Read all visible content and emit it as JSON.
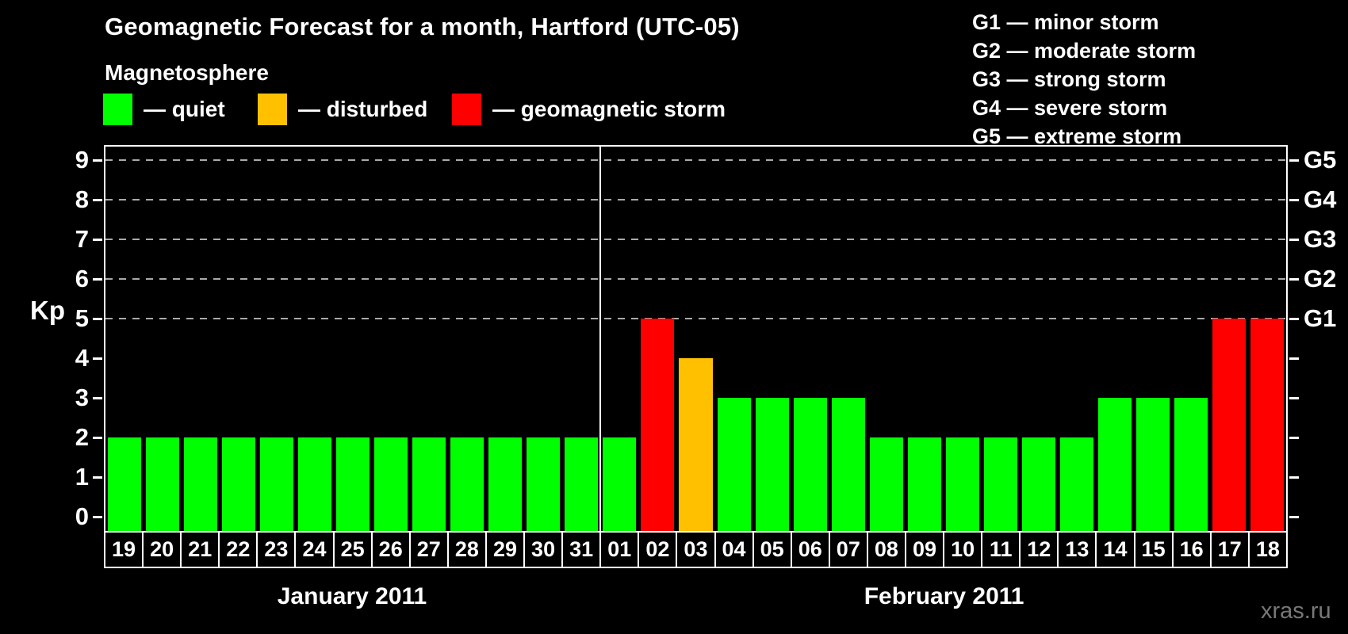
{
  "title": "Geomagnetic Forecast for a month, Hartford (UTC-05)",
  "legend": {
    "heading": "Magnetosphere",
    "items": [
      {
        "name": "quiet",
        "label": "— quiet",
        "color": "#00ff00"
      },
      {
        "name": "disturbed",
        "label": "— disturbed",
        "color": "#ffc000"
      },
      {
        "name": "storm",
        "label": "— geomagnetic storm",
        "color": "#ff0000"
      }
    ]
  },
  "storm_scale_legend": [
    "G1 — minor storm",
    "G2 — moderate storm",
    "G3 — strong storm",
    "G4 — severe storm",
    "G5 — extreme storm"
  ],
  "watermark": "xras.ru",
  "chart_data": {
    "type": "bar",
    "title": "Geomagnetic Forecast for a month, Hartford (UTC-05)",
    "ylabel": "Kp",
    "ylim": [
      0,
      9.4
    ],
    "y_ticks": [
      0,
      1,
      2,
      3,
      4,
      5,
      6,
      7,
      8,
      9
    ],
    "right_axis_labels": [
      {
        "label": "G1",
        "value": 5
      },
      {
        "label": "G2",
        "value": 6
      },
      {
        "label": "G3",
        "value": 7
      },
      {
        "label": "G4",
        "value": 8
      },
      {
        "label": "G5",
        "value": 9
      }
    ],
    "gridlines_at": [
      5,
      6,
      7,
      8,
      9
    ],
    "grid_style": "dashed",
    "colors": {
      "quiet": "#00ff00",
      "disturbed": "#ffc000",
      "storm": "#ff0000"
    },
    "months": [
      {
        "label": "January 2011",
        "days": [
          {
            "day": "19",
            "kp": 2,
            "state": "quiet"
          },
          {
            "day": "20",
            "kp": 2,
            "state": "quiet"
          },
          {
            "day": "21",
            "kp": 2,
            "state": "quiet"
          },
          {
            "day": "22",
            "kp": 2,
            "state": "quiet"
          },
          {
            "day": "23",
            "kp": 2,
            "state": "quiet"
          },
          {
            "day": "24",
            "kp": 2,
            "state": "quiet"
          },
          {
            "day": "25",
            "kp": 2,
            "state": "quiet"
          },
          {
            "day": "26",
            "kp": 2,
            "state": "quiet"
          },
          {
            "day": "27",
            "kp": 2,
            "state": "quiet"
          },
          {
            "day": "28",
            "kp": 2,
            "state": "quiet"
          },
          {
            "day": "29",
            "kp": 2,
            "state": "quiet"
          },
          {
            "day": "30",
            "kp": 2,
            "state": "quiet"
          },
          {
            "day": "31",
            "kp": 2,
            "state": "quiet"
          }
        ]
      },
      {
        "label": "February 2011",
        "days": [
          {
            "day": "01",
            "kp": 2,
            "state": "quiet"
          },
          {
            "day": "02",
            "kp": 5,
            "state": "storm"
          },
          {
            "day": "03",
            "kp": 4,
            "state": "disturbed"
          },
          {
            "day": "04",
            "kp": 3,
            "state": "quiet"
          },
          {
            "day": "05",
            "kp": 3,
            "state": "quiet"
          },
          {
            "day": "06",
            "kp": 3,
            "state": "quiet"
          },
          {
            "day": "07",
            "kp": 3,
            "state": "quiet"
          },
          {
            "day": "08",
            "kp": 2,
            "state": "quiet"
          },
          {
            "day": "09",
            "kp": 2,
            "state": "quiet"
          },
          {
            "day": "10",
            "kp": 2,
            "state": "quiet"
          },
          {
            "day": "11",
            "kp": 2,
            "state": "quiet"
          },
          {
            "day": "12",
            "kp": 2,
            "state": "quiet"
          },
          {
            "day": "13",
            "kp": 2,
            "state": "quiet"
          },
          {
            "day": "14",
            "kp": 3,
            "state": "quiet"
          },
          {
            "day": "15",
            "kp": 3,
            "state": "quiet"
          },
          {
            "day": "16",
            "kp": 3,
            "state": "quiet"
          },
          {
            "day": "17",
            "kp": 5,
            "state": "storm"
          },
          {
            "day": "18",
            "kp": 5,
            "state": "storm"
          }
        ]
      }
    ]
  }
}
